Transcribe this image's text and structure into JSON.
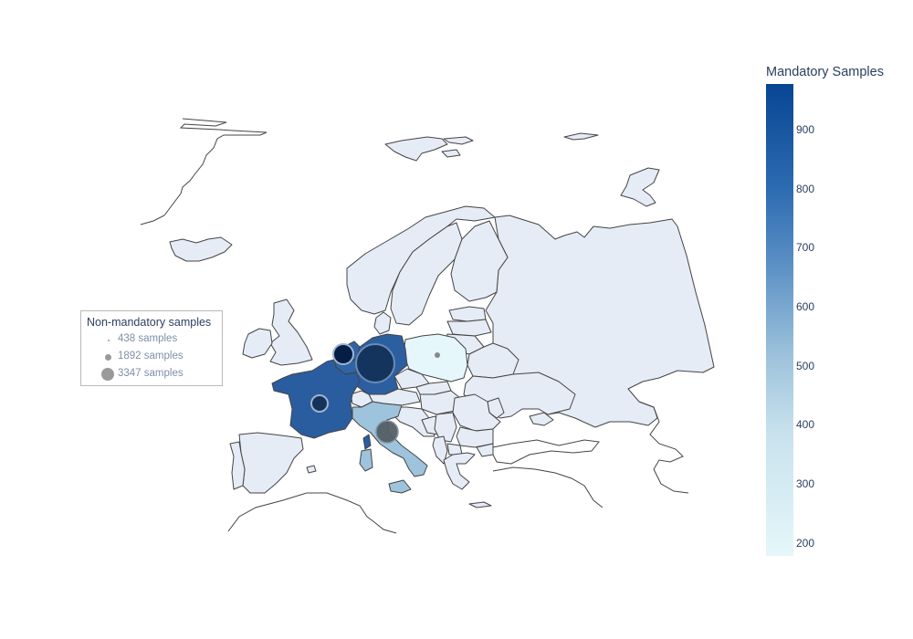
{
  "map": {
    "colors": {
      "land_default": "#e5ecf6",
      "germany": "#2c5fa0",
      "france": "#2a5d9f",
      "italy": "#9ec3dc",
      "poland": "#e5f7fa",
      "belgium_netherlands": "#2f64a6",
      "bubble_germany": "#14325a",
      "bubble_france": "#15325a",
      "bubble_belgium": "#061e45",
      "bubble_italy": "#555f66",
      "bubble_poland": "#888888"
    }
  },
  "legend": {
    "title": "Non-mandatory samples",
    "items": [
      {
        "label": "438 samples"
      },
      {
        "label": "1892 samples"
      },
      {
        "label": "3347 samples"
      }
    ]
  },
  "colorbar": {
    "title": "Mandatory Samples",
    "ticks": [
      "900",
      "800",
      "700",
      "600",
      "500",
      "400",
      "300",
      "200"
    ],
    "gradient_top": "#084594",
    "gradient_bottom": "#e5f7fa"
  }
}
